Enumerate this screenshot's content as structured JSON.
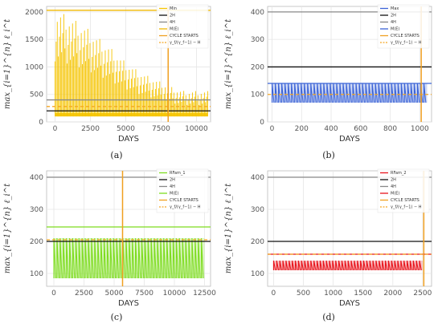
{
  "chart_data": [
    {
      "panel": "a",
      "caption": "(a)",
      "type": "line",
      "xlabel": "DAYS",
      "ylabel": "max_{i=1}^{n} ℓ_i^t",
      "xlim": [
        -600,
        11000
      ],
      "ylim": [
        0,
        2100
      ],
      "xticks": [
        0,
        2500,
        5000,
        7500,
        10000
      ],
      "yticks": [
        0,
        500,
        1000,
        1500,
        2000
      ],
      "fill_color": "#f5c400",
      "envelope": {
        "x": [
          0,
          300,
          700,
          1200,
          1700,
          2200,
          2700,
          3200,
          3700,
          4200,
          4700,
          5200,
          5700,
          6200,
          6700,
          7200,
          7700,
          8200,
          8700,
          9200,
          9700,
          10200,
          10800
        ],
        "y": [
          2000,
          2000,
          1950,
          1880,
          1800,
          1720,
          1600,
          1500,
          1400,
          1280,
          1150,
          1050,
          960,
          880,
          820,
          760,
          700,
          640,
          580,
          560,
          560,
          560,
          560
        ]
      },
      "lower_band": 100,
      "hlines": [
        {
          "name": "2H",
          "y": 200,
          "color": "#111111"
        },
        {
          "name": "4H",
          "y": 400,
          "color": "#888888"
        },
        {
          "name": "M(E)",
          "y": 2030,
          "color": "#f0b800"
        },
        {
          "name": "γ_f/(γ_f−1)·H",
          "y": 280,
          "color": "#f5a623",
          "dashed": true
        }
      ],
      "vlines": [
        {
          "name": "CYCLE STARTS",
          "x": 8000,
          "color": "#f0a020"
        }
      ],
      "legend": [
        "Min",
        "2H",
        "4H",
        "M(E)",
        "CYCLE STARTS",
        "γ_f/(γ_f−1) − H"
      ],
      "legend_colors": [
        "#f5c400",
        "#111111",
        "#888888",
        "#f0b800",
        "#f0a020",
        "#f5a623"
      ]
    },
    {
      "panel": "b",
      "caption": "(b)",
      "type": "line",
      "xlabel": "DAYS",
      "ylabel": "max_{i=1}^{n} ℓ_i^t",
      "xlim": [
        -30,
        1080
      ],
      "ylim": [
        0,
        420
      ],
      "xticks": [
        0,
        200,
        400,
        600,
        800,
        1000
      ],
      "yticks": [
        0,
        100,
        200,
        300,
        400
      ],
      "fill_color": "#3b63d6",
      "band": {
        "low": 70,
        "high": 140,
        "x_start": 0,
        "x_end": 1050
      },
      "hlines": [
        {
          "name": "2H",
          "y": 200,
          "color": "#111111"
        },
        {
          "name": "4H",
          "y": 400,
          "color": "#888888"
        },
        {
          "name": "M(E)",
          "y": 140,
          "color": "#3b63d6"
        },
        {
          "name": "γ_f/(γ_f−1)·H",
          "y": 100,
          "color": "#f5a623",
          "dashed": true
        }
      ],
      "vlines": [
        {
          "name": "CYCLE STARTS",
          "x": 1010,
          "color": "#f0a020"
        }
      ],
      "legend": [
        "Max",
        "2H",
        "4H",
        "M(E)",
        "CYCLE STARTS",
        "γ_f/(γ_f−1) − H"
      ],
      "legend_colors": [
        "#3b63d6",
        "#111111",
        "#888888",
        "#3b63d6",
        "#f0a020",
        "#f5a623"
      ]
    },
    {
      "panel": "c",
      "caption": "(c)",
      "type": "line",
      "xlabel": "DAYS",
      "ylabel": "max_{i=1}^{n} ℓ_i^t",
      "xlim": [
        -600,
        13000
      ],
      "ylim": [
        60,
        420
      ],
      "xticks": [
        0,
        2500,
        5000,
        7500,
        10000,
        12500
      ],
      "yticks": [
        100,
        200,
        300,
        400
      ],
      "fill_color": "#7ddc1f",
      "band": {
        "low": 85,
        "high": 210,
        "x_start": 0,
        "x_end": 12500
      },
      "hlines": [
        {
          "name": "2H",
          "y": 200,
          "color": "#111111"
        },
        {
          "name": "4H",
          "y": 400,
          "color": "#888888"
        },
        {
          "name": "M(E)",
          "y": 245,
          "color": "#7ddc1f"
        },
        {
          "name": "γ_f/(γ_f−1)·H",
          "y": 205,
          "color": "#f5a623",
          "dashed": true
        }
      ],
      "vlines": [
        {
          "name": "CYCLE STARTS",
          "x": 5700,
          "color": "#f0a020"
        }
      ],
      "legend": [
        "RFam_1",
        "2H",
        "4H",
        "M(E)",
        "CYCLE STARTS",
        "γ_f/(γ_f−1) − H"
      ],
      "legend_colors": [
        "#7ddc1f",
        "#111111",
        "#888888",
        "#7ddc1f",
        "#f0a020",
        "#f5a623"
      ]
    },
    {
      "panel": "d",
      "caption": "(d)",
      "type": "line",
      "xlabel": "DAYS",
      "ylabel": "max_{i=1}^{n} ℓ_i^t",
      "xlim": [
        -100,
        2650
      ],
      "ylim": [
        60,
        420
      ],
      "xticks": [
        0,
        500,
        1000,
        1500,
        2000,
        2500
      ],
      "yticks": [
        100,
        200,
        300,
        400
      ],
      "fill_color": "#e8141c",
      "band": {
        "low": 110,
        "high": 140,
        "x_start": 0,
        "x_end": 2500
      },
      "hlines": [
        {
          "name": "2H",
          "y": 200,
          "color": "#111111"
        },
        {
          "name": "4H",
          "y": 400,
          "color": "#888888"
        },
        {
          "name": "M(E)",
          "y": 160,
          "color": "#e8141c"
        },
        {
          "name": "γ_f/(γ_f−1)·H",
          "y": 160,
          "color": "#f5a623",
          "dashed": true
        }
      ],
      "vlines": [
        {
          "name": "CYCLE STARTS",
          "x": 2520,
          "color": "#f0a020"
        }
      ],
      "legend": [
        "RFam_2",
        "2H",
        "4H",
        "M(E)",
        "CYCLE STARTS",
        "γ_f/(γ_f−1) − H"
      ],
      "legend_colors": [
        "#e8141c",
        "#111111",
        "#888888",
        "#e8141c",
        "#f0a020",
        "#f5a623"
      ]
    }
  ]
}
